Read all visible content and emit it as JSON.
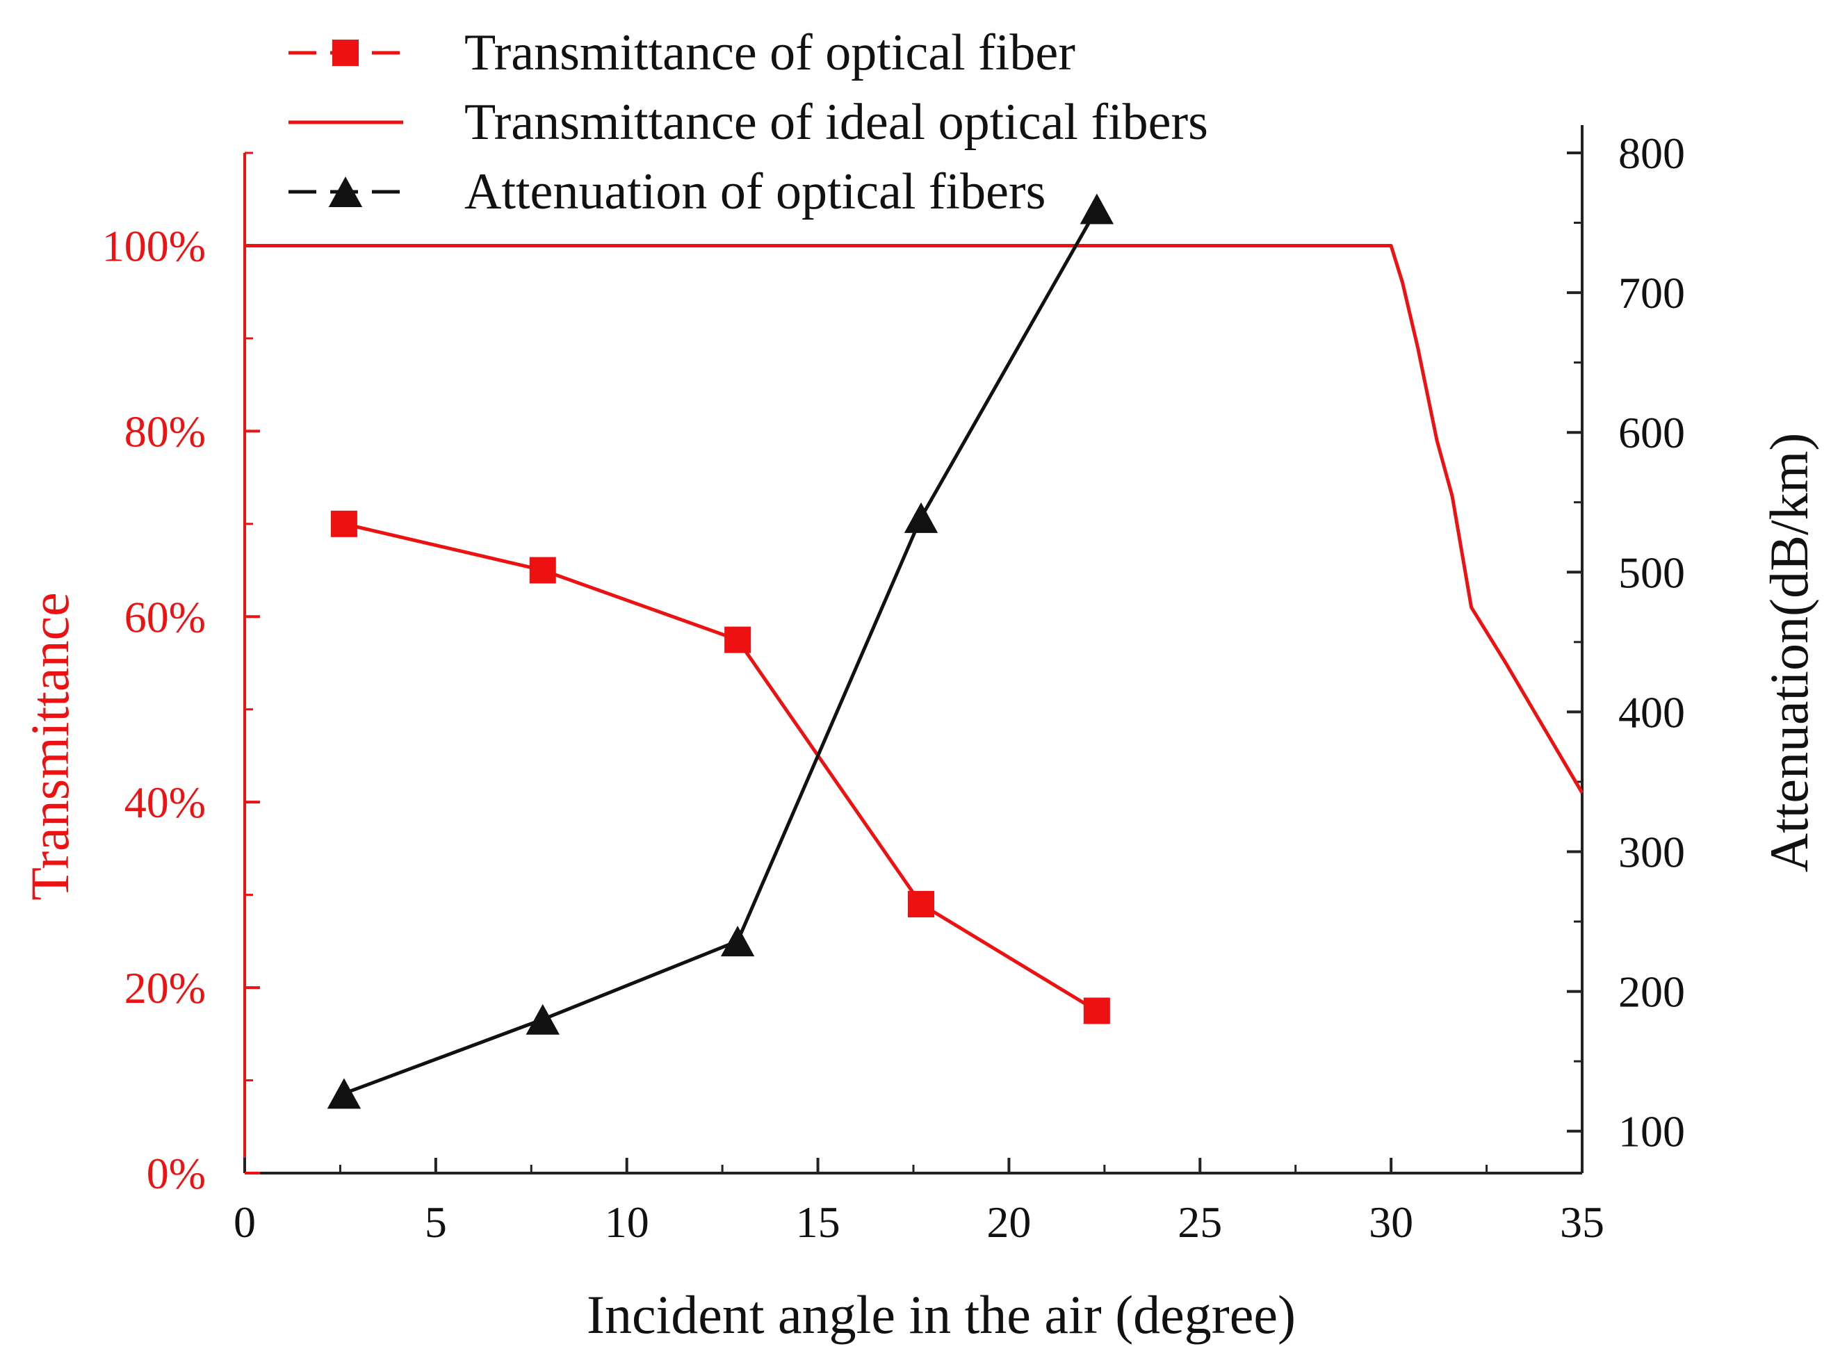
{
  "chart_data": {
    "type": "line",
    "title": "",
    "xlabel": "Incident angle in the air (degree)",
    "ylabel_left": "Transmittance",
    "ylabel_right": "Attenuation(dB/km)",
    "xlim": [
      0,
      35
    ],
    "ylim_left": [
      0,
      110
    ],
    "ylim_right": [
      70,
      800
    ],
    "x_ticks": [
      0,
      5,
      10,
      15,
      20,
      25,
      30,
      35
    ],
    "x_tick_labels": [
      "0",
      "5",
      "10",
      "15",
      "20",
      "25",
      "30",
      "35"
    ],
    "y_left_ticks": [
      0,
      20,
      40,
      60,
      80,
      100
    ],
    "y_left_tick_labels": [
      "0%",
      "20%",
      "40%",
      "60%",
      "80%",
      "100%"
    ],
    "y_right_ticks": [
      100,
      200,
      300,
      400,
      500,
      600,
      700,
      800
    ],
    "y_right_tick_labels": [
      "100",
      "200",
      "300",
      "400",
      "500",
      "600",
      "700",
      "800"
    ],
    "grid": false,
    "legend_position": "top-left",
    "series": [
      {
        "name": "Transmittance of optical fiber",
        "axis": "left",
        "marker": "square",
        "color": "#ee1111",
        "x": [
          2.6,
          7.8,
          12.9,
          17.7,
          22.3
        ],
        "y": [
          70,
          65,
          57.5,
          29,
          17.5
        ]
      },
      {
        "name": "Transmittance of ideal optical fibers",
        "axis": "left",
        "marker": "none",
        "color": "#ee1111",
        "x": [
          0,
          30,
          30.3,
          30.7,
          31.2,
          31.6,
          32.1,
          33,
          34,
          35
        ],
        "y": [
          100,
          100,
          96,
          89,
          79,
          73,
          61,
          55,
          48,
          41
        ]
      },
      {
        "name": "Attenuation of optical fibers",
        "axis": "right",
        "marker": "triangle",
        "color": "#111111",
        "x": [
          2.6,
          7.8,
          12.9,
          17.7,
          22.3
        ],
        "y": [
          127,
          180,
          236,
          539,
          760
        ]
      }
    ]
  },
  "colors": {
    "left_axis": "#ee1111",
    "right_axis": "#222222",
    "text_dark": "#111111"
  }
}
